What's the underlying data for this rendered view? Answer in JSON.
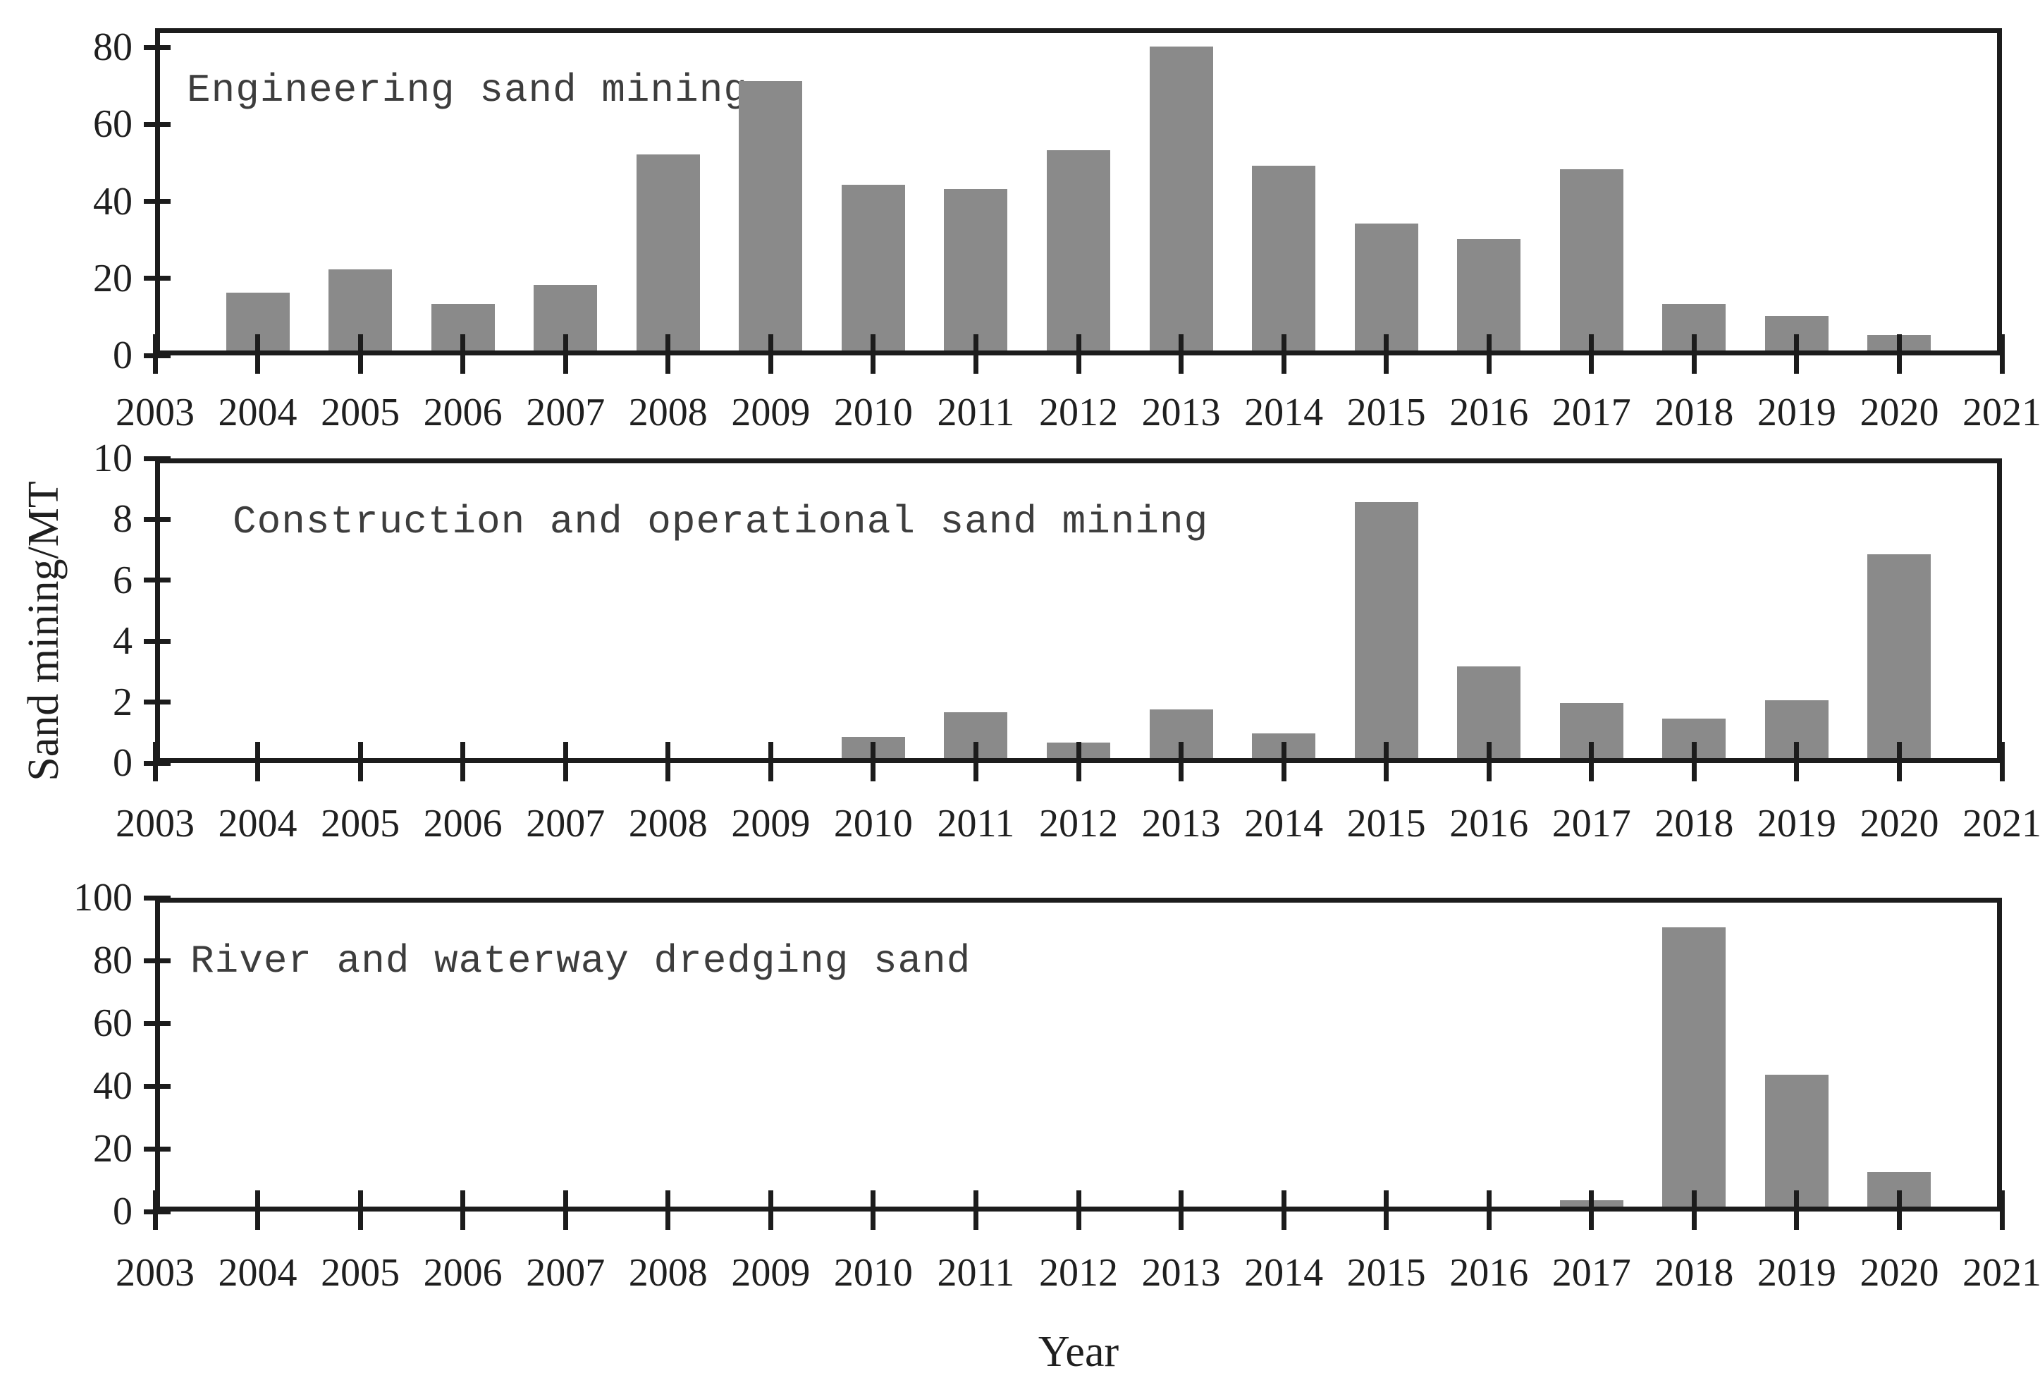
{
  "figure": {
    "y_axis_label": "Sand mining/MT",
    "x_axis_label": "Year",
    "x_tick_labels": [
      "2003",
      "2004",
      "2005",
      "2006",
      "2007",
      "2008",
      "2009",
      "2010",
      "2011",
      "2012",
      "2013",
      "2014",
      "2015",
      "2016",
      "2017",
      "2018",
      "2019",
      "2020",
      "2021"
    ],
    "x_range": [
      2003,
      2021
    ]
  },
  "colors": {
    "bar": "#8a8a8a",
    "axis": "#1c1c1c",
    "text": "#1f1f1f",
    "title_text": "#3d3d3d",
    "background": "#ffffff"
  },
  "chart_data": [
    {
      "type": "bar",
      "title": "Engineering sand mining",
      "ylim": [
        0,
        85
      ],
      "yticks": [
        0,
        20,
        40,
        60,
        80
      ],
      "years": [
        2004,
        2005,
        2006,
        2007,
        2008,
        2009,
        2010,
        2011,
        2012,
        2013,
        2014,
        2015,
        2016,
        2017,
        2018,
        2019,
        2020
      ],
      "values": [
        15,
        21,
        12,
        17,
        51,
        70,
        43,
        42,
        52,
        79,
        48,
        33,
        29,
        47,
        12,
        9,
        4
      ],
      "legend": "none",
      "grid": "off"
    },
    {
      "type": "bar",
      "title": "Construction and operational sand mining",
      "ylim": [
        0,
        10
      ],
      "yticks": [
        0,
        2,
        4,
        6,
        8,
        10
      ],
      "years": [
        2010,
        2011,
        2012,
        2013,
        2014,
        2015,
        2016,
        2017,
        2018,
        2019,
        2020
      ],
      "values": [
        0.7,
        1.5,
        0.5,
        1.6,
        0.8,
        8.4,
        3.0,
        1.8,
        1.3,
        1.9,
        6.7
      ],
      "legend": "none",
      "grid": "off"
    },
    {
      "type": "bar",
      "title": "River and waterway dredging sand",
      "ylim": [
        0,
        100
      ],
      "yticks": [
        0,
        20,
        40,
        60,
        80,
        100
      ],
      "years": [
        2017,
        2018,
        2019,
        2020
      ],
      "values": [
        2,
        89,
        42,
        11
      ],
      "legend": "none",
      "grid": "off"
    }
  ]
}
